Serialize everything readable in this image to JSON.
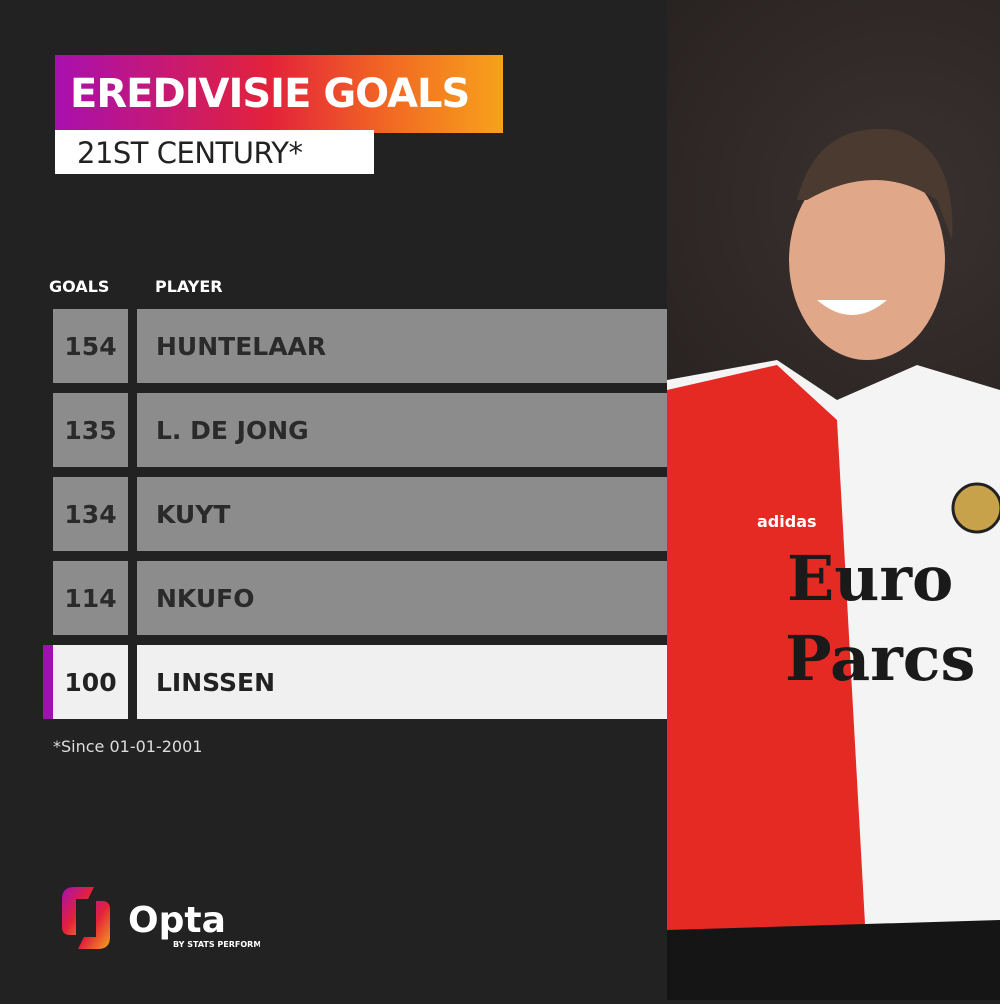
{
  "title": "EREDIVISIE GOALS",
  "subtitle": "21ST CENTURY*",
  "footnote": "*Since 01-01-2001",
  "colors": {
    "background": "#222222",
    "row": "#8c8c8c",
    "highlight_row": "#f0f0f0",
    "highlight_accent": "#9e12b0",
    "title_gradient": [
      "#a80fb0",
      "#e3223a",
      "#f7a21b"
    ]
  },
  "chart_data": {
    "type": "table",
    "columns": [
      "GOALS",
      "PLAYER"
    ],
    "rows": [
      {
        "goals": "154",
        "player": "HUNTELAAR"
      },
      {
        "goals": "135",
        "player": "L. DE JONG"
      },
      {
        "goals": "134",
        "player": "KUYT"
      },
      {
        "goals": "114",
        "player": "NKUFO"
      },
      {
        "goals": "100",
        "player": "LINSSEN",
        "highlighted": true
      }
    ]
  },
  "photo": {
    "shirt_sponsor": "Euro Parcs",
    "kit_brand": "adidas"
  },
  "brand": {
    "name": "Opta",
    "tagline": "BY STATS PERFORM"
  }
}
